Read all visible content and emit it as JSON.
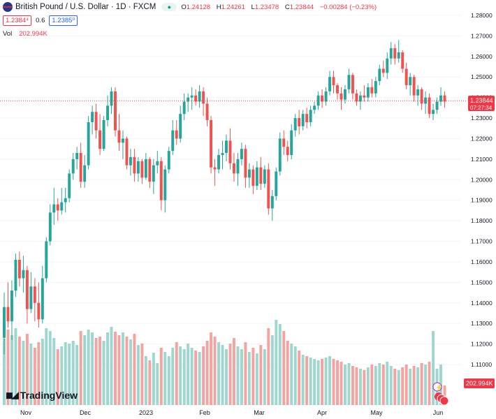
{
  "header": {
    "title": "British Pound / U.S. Dollar · 1D · FXCM",
    "ohlc": [
      {
        "label": "O",
        "value": "1.24128"
      },
      {
        "label": "H",
        "value": "1.24261"
      },
      {
        "label": "L",
        "value": "1.23478"
      },
      {
        "label": "C",
        "value": "1.23844"
      }
    ],
    "change": "−0.00284 (−0.23%)",
    "sell": "1.2384⁴",
    "spread": "0.6",
    "buy": "1.2385⁰"
  },
  "volume": {
    "label": "Vol",
    "value": "202.994K"
  },
  "price_label": {
    "value": "1.23844",
    "countdown": "07:27:34"
  },
  "volume_label": "202.994K",
  "logo": {
    "text": "TradingView"
  },
  "colors": {
    "up": "#26a69a",
    "down": "#ef5350",
    "up_vol": "#9fd6cf",
    "down_vol": "#f5a3a0",
    "last_price": "#f23645"
  },
  "chart_data": {
    "type": "candlestick",
    "title": "British Pound / U.S. Dollar · 1D · FXCM",
    "y_ticks": [
      "1.28000",
      "1.27000",
      "1.26000",
      "1.25000",
      "1.24000",
      "1.23000",
      "1.22000",
      "1.21000",
      "1.20000",
      "1.19000",
      "1.18000",
      "1.17000",
      "1.16000",
      "1.15000",
      "1.14000",
      "1.13000",
      "1.12000",
      "1.11000"
    ],
    "ylim": [
      1.1,
      1.285
    ],
    "x_ticks": [
      "Nov",
      "Dec",
      "2023",
      "Feb",
      "Mar",
      "Apr",
      "May",
      "Jun"
    ],
    "last_price": 1.23844,
    "candles": [
      {
        "o": 1.123,
        "h": 1.145,
        "l": 1.115,
        "c": 1.138,
        "v": 95
      },
      {
        "o": 1.138,
        "h": 1.15,
        "l": 1.128,
        "c": 1.131,
        "v": 108
      },
      {
        "o": 1.131,
        "h": 1.151,
        "l": 1.122,
        "c": 1.146,
        "v": 100
      },
      {
        "o": 1.146,
        "h": 1.164,
        "l": 1.143,
        "c": 1.161,
        "v": 110
      },
      {
        "o": 1.161,
        "h": 1.165,
        "l": 1.148,
        "c": 1.152,
        "v": 98
      },
      {
        "o": 1.152,
        "h": 1.163,
        "l": 1.145,
        "c": 1.156,
        "v": 92
      },
      {
        "o": 1.156,
        "h": 1.158,
        "l": 1.13,
        "c": 1.137,
        "v": 102
      },
      {
        "o": 1.137,
        "h": 1.155,
        "l": 1.135,
        "c": 1.148,
        "v": 88
      },
      {
        "o": 1.148,
        "h": 1.152,
        "l": 1.131,
        "c": 1.14,
        "v": 82
      },
      {
        "o": 1.14,
        "h": 1.15,
        "l": 1.128,
        "c": 1.132,
        "v": 90
      },
      {
        "o": 1.132,
        "h": 1.158,
        "l": 1.13,
        "c": 1.152,
        "v": 95
      },
      {
        "o": 1.152,
        "h": 1.172,
        "l": 1.15,
        "c": 1.17,
        "v": 110
      },
      {
        "o": 1.17,
        "h": 1.188,
        "l": 1.168,
        "c": 1.184,
        "v": 106
      },
      {
        "o": 1.184,
        "h": 1.196,
        "l": 1.178,
        "c": 1.188,
        "v": 96
      },
      {
        "o": 1.188,
        "h": 1.191,
        "l": 1.18,
        "c": 1.185,
        "v": 80
      },
      {
        "o": 1.185,
        "h": 1.196,
        "l": 1.183,
        "c": 1.189,
        "v": 84
      },
      {
        "o": 1.189,
        "h": 1.196,
        "l": 1.184,
        "c": 1.191,
        "v": 90
      },
      {
        "o": 1.191,
        "h": 1.205,
        "l": 1.189,
        "c": 1.203,
        "v": 88
      },
      {
        "o": 1.203,
        "h": 1.213,
        "l": 1.2,
        "c": 1.21,
        "v": 92
      },
      {
        "o": 1.21,
        "h": 1.216,
        "l": 1.205,
        "c": 1.213,
        "v": 86
      },
      {
        "o": 1.213,
        "h": 1.218,
        "l": 1.196,
        "c": 1.199,
        "v": 106
      },
      {
        "o": 1.199,
        "h": 1.212,
        "l": 1.196,
        "c": 1.207,
        "v": 100
      },
      {
        "o": 1.207,
        "h": 1.231,
        "l": 1.205,
        "c": 1.228,
        "v": 108
      },
      {
        "o": 1.228,
        "h": 1.236,
        "l": 1.222,
        "c": 1.233,
        "v": 104
      },
      {
        "o": 1.233,
        "h": 1.237,
        "l": 1.22,
        "c": 1.224,
        "v": 96
      },
      {
        "o": 1.224,
        "h": 1.232,
        "l": 1.212,
        "c": 1.215,
        "v": 98
      },
      {
        "o": 1.215,
        "h": 1.231,
        "l": 1.214,
        "c": 1.229,
        "v": 92
      },
      {
        "o": 1.229,
        "h": 1.241,
        "l": 1.226,
        "c": 1.236,
        "v": 104
      },
      {
        "o": 1.236,
        "h": 1.245,
        "l": 1.232,
        "c": 1.243,
        "v": 112
      },
      {
        "o": 1.243,
        "h": 1.245,
        "l": 1.221,
        "c": 1.224,
        "v": 105
      },
      {
        "o": 1.224,
        "h": 1.232,
        "l": 1.214,
        "c": 1.218,
        "v": 100
      },
      {
        "o": 1.218,
        "h": 1.224,
        "l": 1.21,
        "c": 1.22,
        "v": 104
      },
      {
        "o": 1.22,
        "h": 1.221,
        "l": 1.205,
        "c": 1.207,
        "v": 98
      },
      {
        "o": 1.207,
        "h": 1.215,
        "l": 1.202,
        "c": 1.211,
        "v": 94
      },
      {
        "o": 1.211,
        "h": 1.215,
        "l": 1.199,
        "c": 1.203,
        "v": 102
      },
      {
        "o": 1.203,
        "h": 1.211,
        "l": 1.199,
        "c": 1.209,
        "v": 86
      },
      {
        "o": 1.209,
        "h": 1.21,
        "l": 1.198,
        "c": 1.201,
        "v": 88
      },
      {
        "o": 1.201,
        "h": 1.213,
        "l": 1.2,
        "c": 1.21,
        "v": 70
      },
      {
        "o": 1.21,
        "h": 1.211,
        "l": 1.196,
        "c": 1.199,
        "v": 64
      },
      {
        "o": 1.199,
        "h": 1.21,
        "l": 1.193,
        "c": 1.207,
        "v": 75
      },
      {
        "o": 1.207,
        "h": 1.214,
        "l": 1.203,
        "c": 1.209,
        "v": 60
      },
      {
        "o": 1.209,
        "h": 1.211,
        "l": 1.185,
        "c": 1.19,
        "v": 82
      },
      {
        "o": 1.19,
        "h": 1.207,
        "l": 1.184,
        "c": 1.205,
        "v": 76
      },
      {
        "o": 1.205,
        "h": 1.216,
        "l": 1.203,
        "c": 1.214,
        "v": 70
      },
      {
        "o": 1.214,
        "h": 1.229,
        "l": 1.212,
        "c": 1.224,
        "v": 82
      },
      {
        "o": 1.224,
        "h": 1.229,
        "l": 1.217,
        "c": 1.22,
        "v": 90
      },
      {
        "o": 1.22,
        "h": 1.236,
        "l": 1.218,
        "c": 1.232,
        "v": 84
      },
      {
        "o": 1.232,
        "h": 1.242,
        "l": 1.229,
        "c": 1.238,
        "v": 80
      },
      {
        "o": 1.238,
        "h": 1.242,
        "l": 1.233,
        "c": 1.24,
        "v": 88
      },
      {
        "o": 1.24,
        "h": 1.245,
        "l": 1.234,
        "c": 1.241,
        "v": 82
      },
      {
        "o": 1.241,
        "h": 1.244,
        "l": 1.236,
        "c": 1.238,
        "v": 78
      },
      {
        "o": 1.238,
        "h": 1.246,
        "l": 1.235,
        "c": 1.243,
        "v": 76
      },
      {
        "o": 1.243,
        "h": 1.245,
        "l": 1.231,
        "c": 1.237,
        "v": 84
      },
      {
        "o": 1.237,
        "h": 1.24,
        "l": 1.226,
        "c": 1.229,
        "v": 92
      },
      {
        "o": 1.229,
        "h": 1.231,
        "l": 1.203,
        "c": 1.206,
        "v": 104
      },
      {
        "o": 1.206,
        "h": 1.21,
        "l": 1.197,
        "c": 1.205,
        "v": 98
      },
      {
        "o": 1.205,
        "h": 1.215,
        "l": 1.203,
        "c": 1.212,
        "v": 90
      },
      {
        "o": 1.212,
        "h": 1.219,
        "l": 1.205,
        "c": 1.213,
        "v": 86
      },
      {
        "o": 1.213,
        "h": 1.222,
        "l": 1.209,
        "c": 1.219,
        "v": 80
      },
      {
        "o": 1.219,
        "h": 1.225,
        "l": 1.205,
        "c": 1.208,
        "v": 88
      },
      {
        "o": 1.208,
        "h": 1.213,
        "l": 1.199,
        "c": 1.203,
        "v": 96
      },
      {
        "o": 1.203,
        "h": 1.213,
        "l": 1.197,
        "c": 1.21,
        "v": 84
      },
      {
        "o": 1.21,
        "h": 1.218,
        "l": 1.207,
        "c": 1.215,
        "v": 80
      },
      {
        "o": 1.215,
        "h": 1.217,
        "l": 1.196,
        "c": 1.201,
        "v": 90
      },
      {
        "o": 1.201,
        "h": 1.208,
        "l": 1.196,
        "c": 1.205,
        "v": 76
      },
      {
        "o": 1.205,
        "h": 1.207,
        "l": 1.193,
        "c": 1.197,
        "v": 82
      },
      {
        "o": 1.197,
        "h": 1.209,
        "l": 1.195,
        "c": 1.206,
        "v": 74
      },
      {
        "o": 1.206,
        "h": 1.211,
        "l": 1.195,
        "c": 1.198,
        "v": 86
      },
      {
        "o": 1.198,
        "h": 1.207,
        "l": 1.196,
        "c": 1.205,
        "v": 80
      },
      {
        "o": 1.205,
        "h": 1.208,
        "l": 1.183,
        "c": 1.186,
        "v": 110
      },
      {
        "o": 1.186,
        "h": 1.195,
        "l": 1.18,
        "c": 1.192,
        "v": 100
      },
      {
        "o": 1.192,
        "h": 1.206,
        "l": 1.19,
        "c": 1.204,
        "v": 122
      },
      {
        "o": 1.204,
        "h": 1.223,
        "l": 1.202,
        "c": 1.22,
        "v": 116
      },
      {
        "o": 1.22,
        "h": 1.224,
        "l": 1.212,
        "c": 1.216,
        "v": 106
      },
      {
        "o": 1.216,
        "h": 1.219,
        "l": 1.209,
        "c": 1.212,
        "v": 92
      },
      {
        "o": 1.212,
        "h": 1.227,
        "l": 1.21,
        "c": 1.224,
        "v": 88
      },
      {
        "o": 1.224,
        "h": 1.232,
        "l": 1.221,
        "c": 1.23,
        "v": 84
      },
      {
        "o": 1.23,
        "h": 1.234,
        "l": 1.222,
        "c": 1.226,
        "v": 78
      },
      {
        "o": 1.226,
        "h": 1.234,
        "l": 1.224,
        "c": 1.232,
        "v": 72
      },
      {
        "o": 1.232,
        "h": 1.235,
        "l": 1.225,
        "c": 1.228,
        "v": 70
      },
      {
        "o": 1.228,
        "h": 1.236,
        "l": 1.226,
        "c": 1.234,
        "v": 68
      },
      {
        "o": 1.234,
        "h": 1.238,
        "l": 1.232,
        "c": 1.236,
        "v": 66
      },
      {
        "o": 1.236,
        "h": 1.243,
        "l": 1.234,
        "c": 1.241,
        "v": 64
      },
      {
        "o": 1.241,
        "h": 1.244,
        "l": 1.235,
        "c": 1.238,
        "v": 66
      },
      {
        "o": 1.238,
        "h": 1.245,
        "l": 1.236,
        "c": 1.243,
        "v": 68
      },
      {
        "o": 1.243,
        "h": 1.253,
        "l": 1.241,
        "c": 1.25,
        "v": 70
      },
      {
        "o": 1.25,
        "h": 1.253,
        "l": 1.242,
        "c": 1.246,
        "v": 66
      },
      {
        "o": 1.246,
        "h": 1.247,
        "l": 1.239,
        "c": 1.242,
        "v": 64
      },
      {
        "o": 1.242,
        "h": 1.245,
        "l": 1.234,
        "c": 1.239,
        "v": 62
      },
      {
        "o": 1.239,
        "h": 1.246,
        "l": 1.237,
        "c": 1.244,
        "v": 58
      },
      {
        "o": 1.244,
        "h": 1.254,
        "l": 1.242,
        "c": 1.251,
        "v": 60
      },
      {
        "o": 1.251,
        "h": 1.252,
        "l": 1.239,
        "c": 1.242,
        "v": 56
      },
      {
        "o": 1.242,
        "h": 1.244,
        "l": 1.236,
        "c": 1.238,
        "v": 54
      },
      {
        "o": 1.238,
        "h": 1.243,
        "l": 1.234,
        "c": 1.241,
        "v": 52
      },
      {
        "o": 1.241,
        "h": 1.246,
        "l": 1.238,
        "c": 1.24,
        "v": 50
      },
      {
        "o": 1.24,
        "h": 1.247,
        "l": 1.238,
        "c": 1.245,
        "v": 54
      },
      {
        "o": 1.245,
        "h": 1.249,
        "l": 1.24,
        "c": 1.242,
        "v": 58
      },
      {
        "o": 1.242,
        "h": 1.25,
        "l": 1.24,
        "c": 1.248,
        "v": 56
      },
      {
        "o": 1.248,
        "h": 1.256,
        "l": 1.246,
        "c": 1.254,
        "v": 60
      },
      {
        "o": 1.254,
        "h": 1.258,
        "l": 1.25,
        "c": 1.252,
        "v": 58
      },
      {
        "o": 1.252,
        "h": 1.262,
        "l": 1.249,
        "c": 1.259,
        "v": 62
      },
      {
        "o": 1.259,
        "h": 1.267,
        "l": 1.256,
        "c": 1.264,
        "v": 56
      },
      {
        "o": 1.264,
        "h": 1.266,
        "l": 1.256,
        "c": 1.259,
        "v": 52
      },
      {
        "o": 1.259,
        "h": 1.268,
        "l": 1.257,
        "c": 1.262,
        "v": 50
      },
      {
        "o": 1.262,
        "h": 1.263,
        "l": 1.252,
        "c": 1.254,
        "v": 54
      },
      {
        "o": 1.254,
        "h": 1.257,
        "l": 1.244,
        "c": 1.246,
        "v": 58
      },
      {
        "o": 1.246,
        "h": 1.252,
        "l": 1.241,
        "c": 1.25,
        "v": 52
      },
      {
        "o": 1.25,
        "h": 1.251,
        "l": 1.238,
        "c": 1.241,
        "v": 56
      },
      {
        "o": 1.241,
        "h": 1.246,
        "l": 1.236,
        "c": 1.244,
        "v": 54
      },
      {
        "o": 1.244,
        "h": 1.245,
        "l": 1.234,
        "c": 1.237,
        "v": 60
      },
      {
        "o": 1.237,
        "h": 1.243,
        "l": 1.232,
        "c": 1.24,
        "v": 58
      },
      {
        "o": 1.24,
        "h": 1.242,
        "l": 1.23,
        "c": 1.232,
        "v": 62
      },
      {
        "o": 1.232,
        "h": 1.237,
        "l": 1.229,
        "c": 1.234,
        "v": 106
      },
      {
        "o": 1.234,
        "h": 1.24,
        "l": 1.232,
        "c": 1.238,
        "v": 52
      },
      {
        "o": 1.238,
        "h": 1.245,
        "l": 1.236,
        "c": 1.241,
        "v": 58
      },
      {
        "o": 1.241,
        "h": 1.243,
        "l": 1.235,
        "c": 1.238,
        "v": 28
      }
    ]
  }
}
